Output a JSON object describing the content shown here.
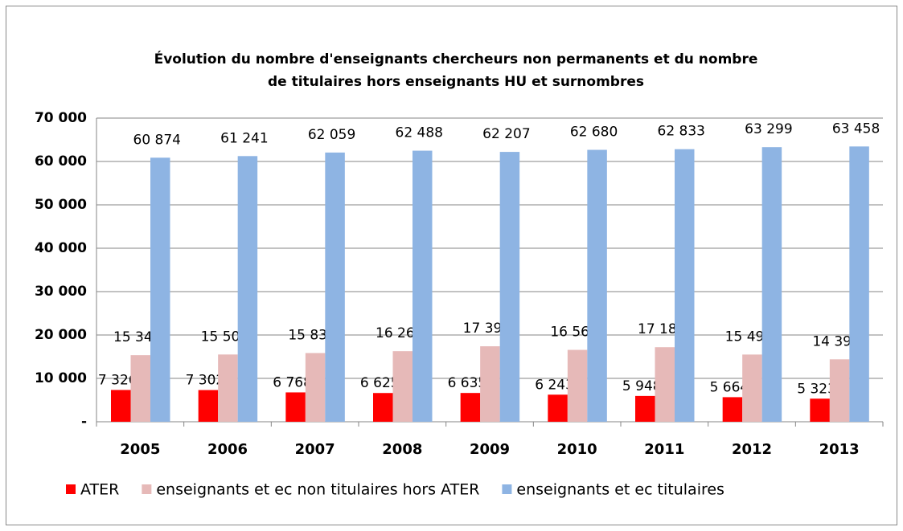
{
  "chart_data": {
    "type": "bar",
    "title": [
      "Évolution du nombre d'enseignants chercheurs non permanents et du nombre",
      "de titulaires hors enseignants HU et surnombres"
    ],
    "categories": [
      "2005",
      "2006",
      "2007",
      "2008",
      "2009",
      "2010",
      "2011",
      "2012",
      "2013"
    ],
    "series": [
      {
        "name": "ATER",
        "color": "#ff0000",
        "values": [
          7326,
          7302,
          6768,
          6625,
          6635,
          6243,
          5948,
          5664,
          5323
        ],
        "value_labels": [
          "7 326",
          "7 302",
          "6 768",
          "6 625",
          "6 635",
          "6 243",
          "5 948",
          "5 664",
          "5 323"
        ]
      },
      {
        "name": "enseignants et ec non titulaires hors ATER",
        "color": "#e6b9b8",
        "values": [
          15344,
          15504,
          15836,
          16265,
          17399,
          16566,
          17185,
          15491,
          14390
        ],
        "value_labels": [
          "15 344",
          "15 504",
          "15 836",
          "16 265",
          "17 399",
          "16 566",
          "17 185",
          "15 491",
          "14 390"
        ]
      },
      {
        "name": "enseignants et ec titulaires",
        "color": "#8eb4e3",
        "values": [
          60874,
          61241,
          62059,
          62488,
          62207,
          62680,
          62833,
          63299,
          63458
        ],
        "value_labels": [
          "60 874",
          "61 241",
          "62 059",
          "62 488",
          "62 207",
          "62 680",
          "62 833",
          "63 299",
          "63 458"
        ]
      }
    ],
    "ylim": [
      0,
      70000
    ],
    "yticks": [
      {
        "value": 0,
        "label": "-"
      },
      {
        "value": 10000,
        "label": "10 000"
      },
      {
        "value": 20000,
        "label": "20 000"
      },
      {
        "value": 30000,
        "label": "30 000"
      },
      {
        "value": 40000,
        "label": "40 000"
      },
      {
        "value": 50000,
        "label": "50 000"
      },
      {
        "value": 60000,
        "label": "60 000"
      },
      {
        "value": 70000,
        "label": "70 000"
      }
    ],
    "grid": true,
    "legend": "bottom"
  }
}
